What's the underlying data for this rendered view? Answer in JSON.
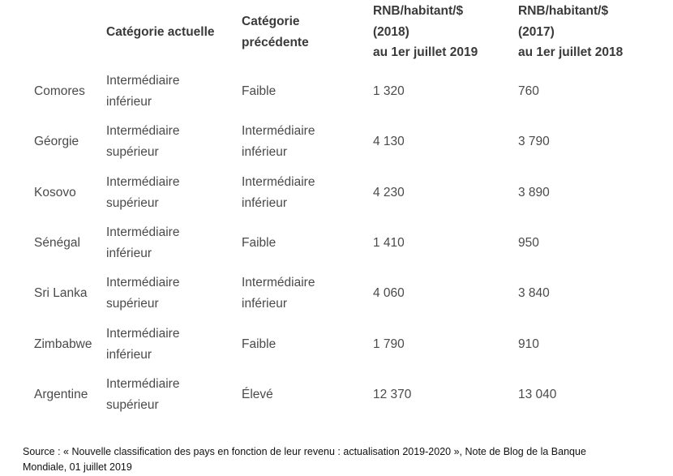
{
  "table": {
    "headers": [
      "",
      "Catégorie actuelle",
      [
        "Catégorie",
        "précédente"
      ],
      [
        "RNB/habitant/$",
        "(2018)",
        "au 1er juillet 2019"
      ],
      [
        "RNB/habitant/$",
        "(2017)",
        "au 1er juillet 2018"
      ]
    ],
    "rows": [
      {
        "country": "Comores",
        "current": [
          "Intermédiaire",
          "inférieur"
        ],
        "previous": [
          "Faible"
        ],
        "gni2018": "1 320",
        "gni2017": "760"
      },
      {
        "country": "Géorgie",
        "current": [
          "Intermédiaire",
          "supérieur"
        ],
        "previous": [
          "Intermédiaire",
          "inférieur"
        ],
        "gni2018": "4 130",
        "gni2017": "3 790"
      },
      {
        "country": "Kosovo",
        "current": [
          "Intermédiaire",
          "supérieur"
        ],
        "previous": [
          "Intermédiaire",
          "inférieur"
        ],
        "gni2018": "4 230",
        "gni2017": "3 890"
      },
      {
        "country": "Sénégal",
        "current": [
          "Intermédiaire",
          "inférieur"
        ],
        "previous": [
          "Faible"
        ],
        "gni2018": "1 410",
        "gni2017": "950"
      },
      {
        "country": "Sri Lanka",
        "current": [
          "Intermédiaire",
          "supérieur"
        ],
        "previous": [
          "Intermédiaire",
          "inférieur"
        ],
        "gni2018": "4 060",
        "gni2017": "3 840"
      },
      {
        "country": "Zimbabwe",
        "current": [
          "Intermédiaire",
          "inférieur"
        ],
        "previous": [
          "Faible"
        ],
        "gni2018": "1 790",
        "gni2017": "910"
      },
      {
        "country": "Argentine",
        "current": [
          "Intermédiaire",
          "supérieur"
        ],
        "previous": [
          "Élevé"
        ],
        "gni2018": "12 370",
        "gni2017": "13 040"
      }
    ]
  },
  "source": [
    "Source : « Nouvelle classification des pays en fonction de leur revenu : actualisation 2019-2020 », Note de Blog de la Banque",
    "Mondiale,  01 juillet 2019"
  ]
}
